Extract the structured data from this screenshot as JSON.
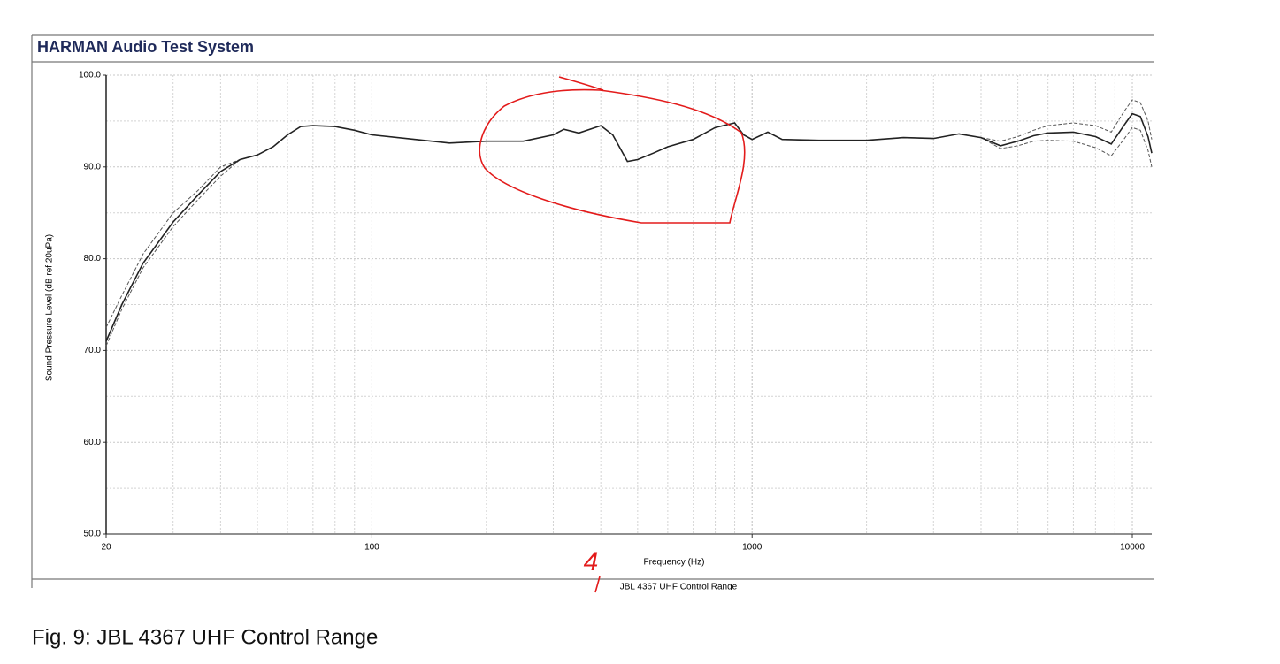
{
  "window_title": "HARMAN Audio Test System",
  "caption": "Fig. 9: JBL 4367 UHF Control Range",
  "chart_data": {
    "type": "line",
    "subtitle": "JBL 4367 UHF Control Range",
    "x_label": "Frequency (Hz)",
    "y_label": "Sound Pressure Level (dB ref 20uPa)",
    "annotation": "4",
    "log_x": true,
    "grid": true,
    "xlim": [
      20,
      11250
    ],
    "xticks": [
      20,
      100,
      1000,
      10000
    ],
    "ylim": [
      50,
      100
    ],
    "yticks": [
      {
        "value": 50,
        "label": "50.0"
      },
      {
        "value": 60,
        "label": "60.0"
      },
      {
        "value": 70,
        "label": "70.0"
      },
      {
        "value": 80,
        "label": "80.0"
      },
      {
        "value": 90,
        "label": "90.0"
      },
      {
        "value": 100,
        "label": "100.0"
      }
    ],
    "x": [
      20,
      22,
      25,
      30,
      35,
      40,
      45,
      50,
      55,
      60,
      65,
      70,
      80,
      90,
      100,
      130,
      160,
      200,
      250,
      300,
      320,
      350,
      400,
      430,
      470,
      500,
      550,
      600,
      700,
      800,
      900,
      950,
      1000,
      1100,
      1200,
      1500,
      2000,
      2500,
      3000,
      3500,
      4000,
      4500,
      5000,
      5500,
      6000,
      7000,
      8000,
      8800,
      9500,
      10000,
      10500,
      11000,
      11250
    ],
    "series": [
      {
        "color": "#555555",
        "dashed": true,
        "values": [
          72.5,
          76,
          80.5,
          85,
          87.5,
          90,
          90.8,
          91.3,
          92.2,
          93.5,
          94.4,
          94.5,
          94.4,
          94.0,
          93.5,
          93.0,
          92.6,
          92.8,
          92.8,
          93.5,
          94.1,
          93.7,
          94.5,
          93.5,
          90.6,
          90.8,
          91.5,
          92.2,
          93.0,
          94.3,
          94.8,
          93.5,
          93.0,
          93.8,
          93.0,
          92.9,
          92.9,
          93.2,
          93.1,
          93.6,
          93.2,
          92.8,
          93.3,
          94.0,
          94.5,
          94.8,
          94.5,
          93.8,
          96,
          97.3,
          97,
          95,
          93
        ]
      },
      {
        "color": "#555555",
        "dashed": true,
        "values": [
          70.5,
          74.5,
          79,
          83.5,
          86.5,
          89,
          90.8,
          91.3,
          92.2,
          93.5,
          94.4,
          94.5,
          94.4,
          94.0,
          93.5,
          93.0,
          92.6,
          92.8,
          92.8,
          93.5,
          94.1,
          93.7,
          94.5,
          93.5,
          90.6,
          90.8,
          91.5,
          92.2,
          93.0,
          94.3,
          94.8,
          93.5,
          93.0,
          93.8,
          93.0,
          92.9,
          92.9,
          93.2,
          93.1,
          93.6,
          93.2,
          92.0,
          92.3,
          92.8,
          92.9,
          92.8,
          92.1,
          91.2,
          93,
          94.3,
          94,
          91.8,
          90
        ]
      },
      {
        "color": "#222222",
        "dashed": false,
        "values": [
          71,
          75,
          79.5,
          84,
          87,
          89.5,
          90.8,
          91.3,
          92.2,
          93.5,
          94.4,
          94.5,
          94.4,
          94.0,
          93.5,
          93.0,
          92.6,
          92.8,
          92.8,
          93.5,
          94.1,
          93.7,
          94.5,
          93.5,
          90.6,
          90.8,
          91.5,
          92.2,
          93.0,
          94.3,
          94.8,
          93.5,
          93.0,
          93.8,
          93.0,
          92.9,
          92.9,
          93.2,
          93.1,
          93.6,
          93.2,
          92.3,
          92.8,
          93.4,
          93.7,
          93.8,
          93.3,
          92.5,
          94.5,
          95.8,
          95.5,
          93.3,
          91.5
        ]
      }
    ]
  }
}
